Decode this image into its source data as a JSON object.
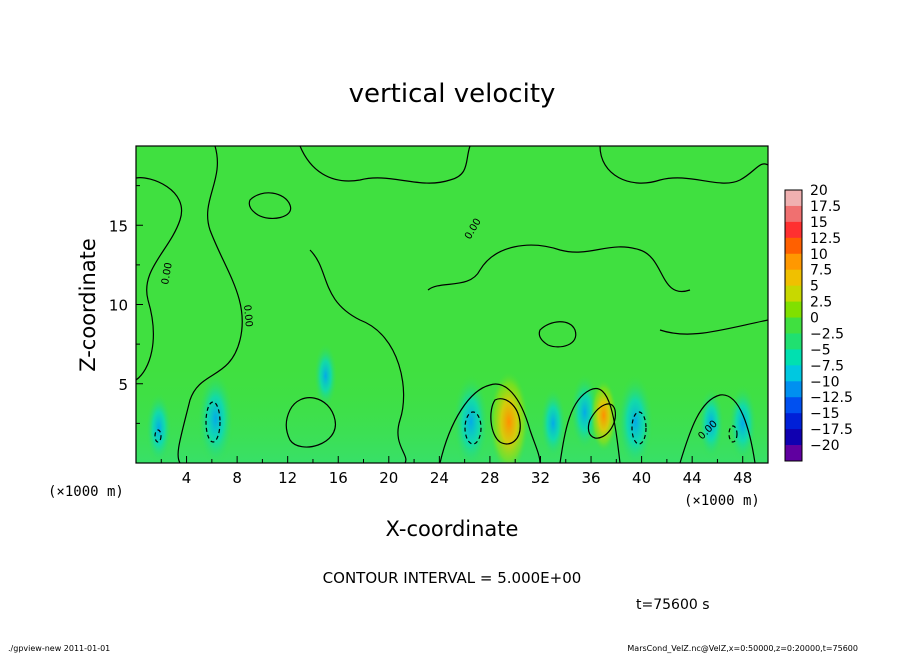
{
  "chart_data": {
    "type": "heatmap",
    "title": "vertical velocity",
    "xlabel": "X-coordinate",
    "ylabel": "Z-coordinate",
    "x_unit_label": "(×1000 m)",
    "y_unit_label": "(×1000 m)",
    "xlim": [
      0,
      50
    ],
    "ylim": [
      0,
      20
    ],
    "x_ticks": [
      4,
      8,
      12,
      16,
      20,
      24,
      28,
      32,
      36,
      40,
      44,
      48
    ],
    "y_ticks": [
      5,
      10,
      15
    ],
    "grid": false,
    "legend_position": "right",
    "colorbar_levels": [
      "20",
      "17.5",
      "15",
      "12.5",
      "10",
      "7.5",
      "5",
      "2.5",
      "0",
      "−2.5",
      "−5",
      "−7.5",
      "−10",
      "−12.5",
      "−15",
      "−17.5",
      "−20"
    ],
    "colorbar_colors": [
      "#f0b0b0",
      "#f07070",
      "#ff3030",
      "#ff6000",
      "#ff9800",
      "#f0c000",
      "#c8d800",
      "#80e000",
      "#40e040",
      "#20e070",
      "#00e0b0",
      "#00c8e0",
      "#0090f0",
      "#0050f0",
      "#0020d8",
      "#1000b0",
      "#6000a0"
    ],
    "contour_interval_label": "CONTOUR INTERVAL = 5.000E+00",
    "contour_levels": [
      -5,
      0,
      5
    ],
    "contour_zero_label": "0.00",
    "time_label": "t=75600  s",
    "features": [
      {
        "x": 6.3,
        "z": 2.8,
        "w": -8
      },
      {
        "x": 1.8,
        "z": 2.2,
        "w": -4
      },
      {
        "x": 15,
        "z": 5.5,
        "w": -3
      },
      {
        "x": 26.5,
        "z": 2.6,
        "w": -8
      },
      {
        "x": 29.5,
        "z": 2.6,
        "w": 9
      },
      {
        "x": 33,
        "z": 2.5,
        "w": -4
      },
      {
        "x": 35.5,
        "z": 3.2,
        "w": -5
      },
      {
        "x": 37,
        "z": 3.0,
        "w": 4
      },
      {
        "x": 39.5,
        "z": 2.6,
        "w": -8
      },
      {
        "x": 45.5,
        "z": 2.5,
        "w": -4
      },
      {
        "x": 48,
        "z": 2.5,
        "w": -5
      }
    ]
  },
  "footer": {
    "left": "./gpview-new   2011-01-01",
    "right": "MarsCond_VelZ.nc@VelZ,x=0:50000,z=0:20000,t=75600"
  }
}
